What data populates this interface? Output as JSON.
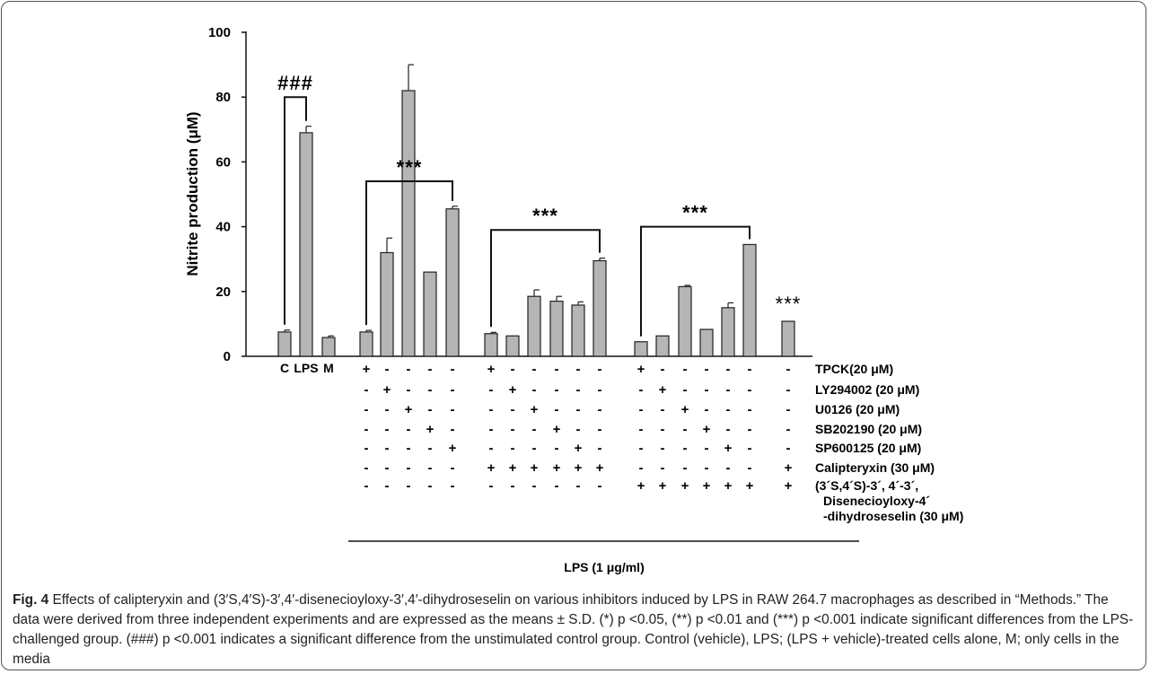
{
  "chart_data": {
    "type": "bar",
    "ylabel": "Nitrite production (μM)",
    "ylim": [
      0,
      100
    ],
    "yticks": [
      0,
      20,
      40,
      60,
      80,
      100
    ],
    "bar_color": "#b5b5b5",
    "control_labels": [
      "C",
      "LPS",
      "M"
    ],
    "bars": [
      {
        "group": 0,
        "value": 7.5,
        "error": 0.6
      },
      {
        "group": 0,
        "value": 69,
        "error": 2.0
      },
      {
        "group": 0,
        "value": 5.8,
        "error": 0.5
      },
      {
        "group": 1,
        "value": 7.5,
        "error": 0.5
      },
      {
        "group": 1,
        "value": 32,
        "error": 4.5
      },
      {
        "group": 1,
        "value": 82,
        "error": 8.0
      },
      {
        "group": 1,
        "value": 26,
        "error": 0
      },
      {
        "group": 1,
        "value": 45.5,
        "error": 0.8
      },
      {
        "group": 2,
        "value": 7,
        "error": 0.4
      },
      {
        "group": 2,
        "value": 6.3,
        "error": 0
      },
      {
        "group": 2,
        "value": 18.5,
        "error": 2.0
      },
      {
        "group": 2,
        "value": 17,
        "error": 1.5
      },
      {
        "group": 2,
        "value": 15.8,
        "error": 1.0
      },
      {
        "group": 2,
        "value": 29.5,
        "error": 0.8
      },
      {
        "group": 3,
        "value": 4.5,
        "error": 0
      },
      {
        "group": 3,
        "value": 6.3,
        "error": 0
      },
      {
        "group": 3,
        "value": 21.5,
        "error": 0.4
      },
      {
        "group": 3,
        "value": 8.3,
        "error": 0
      },
      {
        "group": 3,
        "value": 15,
        "error": 1.5
      },
      {
        "group": 3,
        "value": 34.5,
        "error": 0
      },
      {
        "group": 4,
        "value": 10.8,
        "error": 0
      }
    ],
    "annotations": [
      {
        "text": "###",
        "from_bar": 0,
        "to_bar": 1,
        "bracket_value": 80
      },
      {
        "text": "***",
        "from_bar": 3,
        "to_bar": 7,
        "bracket_value": 54
      },
      {
        "text": "***",
        "from_bar": 8,
        "to_bar": 13,
        "bracket_value": 39
      },
      {
        "text": "***",
        "from_bar": 14,
        "to_bar": 19,
        "bracket_value": 40
      },
      {
        "text": "***",
        "from_bar": 20,
        "to_bar": 20,
        "bracket_value": null
      }
    ],
    "treatment_table": [
      {
        "label": "TPCK(20 μM)",
        "signs": [
          "+",
          "-",
          "-",
          "-",
          "-",
          "+",
          "-",
          "-",
          "-",
          "-",
          "-",
          "+",
          "-",
          "-",
          "-",
          "-",
          "-",
          "-"
        ]
      },
      {
        "label": "LY294002 (20 μM)",
        "signs": [
          "-",
          "+",
          "-",
          "-",
          "-",
          "-",
          "+",
          "-",
          "-",
          "-",
          "-",
          "-",
          "+",
          "-",
          "-",
          "-",
          "-",
          "-"
        ]
      },
      {
        "label": "U0126 (20 μM)",
        "signs": [
          "-",
          "-",
          "+",
          "-",
          "-",
          "-",
          "-",
          "+",
          "-",
          "-",
          "-",
          "-",
          "-",
          "+",
          "-",
          "-",
          "-",
          "-"
        ]
      },
      {
        "label": "SB202190 (20 μM)",
        "signs": [
          "-",
          "-",
          "-",
          "+",
          "-",
          "-",
          "-",
          "-",
          "+",
          "-",
          "-",
          "-",
          "-",
          "-",
          "+",
          "-",
          "-",
          "-"
        ]
      },
      {
        "label": "SP600125 (20 μM)",
        "signs": [
          "-",
          "-",
          "-",
          "-",
          "+",
          "-",
          "-",
          "-",
          "-",
          "+",
          "-",
          "-",
          "-",
          "-",
          "-",
          "+",
          "-",
          "-"
        ]
      },
      {
        "label": "Calipteryxin (30 μM)",
        "signs": [
          "-",
          "-",
          "-",
          "-",
          "-",
          "+",
          "+",
          "+",
          "+",
          "+",
          "+",
          "-",
          "-",
          "-",
          "-",
          "-",
          "-",
          "+"
        ]
      },
      {
        "label": "(3´S,4´S)-3´, 4´-3´,",
        "label_extra": [
          "Disenecioyloxy-4´",
          "-dihydroseselin (30 μM)"
        ],
        "signs": [
          "-",
          "-",
          "-",
          "-",
          "-",
          "-",
          "-",
          "-",
          "-",
          "-",
          "-",
          "+",
          "+",
          "+",
          "+",
          "+",
          "+",
          "+"
        ]
      }
    ],
    "lps_label": "LPS (1 μg/ml)"
  },
  "caption": {
    "fig_label": "Fig. 4",
    "text": "Effects of calipteryxin and (3′S,4′S)-3′,4′-disenecioyloxy-3′,4′-dihydroseselin on various inhibitors induced by LPS in RAW 264.7 macrophages as described in “Methods.” The data were derived from three independent experiments and are expressed as the means ± S.D. (*) p <0.05, (**) p <0.01 and (***) p <0.001 indicate significant differences from the LPS-challenged group. (###) p <0.001 indicates a significant difference from the unstimulated control group. Control (vehicle), LPS; (LPS + vehicle)-treated cells alone, M; only cells in the media"
  }
}
